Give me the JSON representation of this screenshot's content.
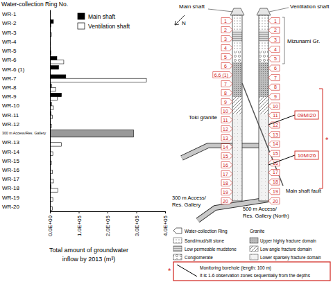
{
  "chart_data": {
    "type": "bar",
    "orientation": "horizontal",
    "y_label": "Water-collection Ring No.",
    "x_label": [
      "Total amount of groundwater",
      "inflow by 2013 (m³)"
    ],
    "categories": [
      "WR-1",
      "WR-2",
      "WR-3",
      "WR-4",
      "WR-5",
      "WR-6",
      "WR-6 (1)",
      "WR-7",
      "WR-8",
      "WR-9",
      "WR-10",
      "WR-11",
      "WR-12",
      "300 m Access/Res. Gallery",
      "WR-13",
      "WR-14",
      "WR-15",
      "WR-16",
      "WR-17",
      "WR-18",
      "WR-19",
      "WR-20"
    ],
    "series": [
      {
        "name": "Main shaft",
        "color": "#000000",
        "values": [
          2000,
          12000,
          2000,
          1000,
          2000,
          24000,
          30000,
          55000,
          5000,
          40000,
          5000,
          3000,
          2000,
          null,
          2000,
          2000,
          1000,
          1000,
          2000,
          3000,
          1000,
          1000
        ]
      },
      {
        "name": "Ventilation shaft",
        "color": "#ffffff",
        "values": [
          1000,
          3000,
          5000,
          2000,
          3000,
          48000,
          null,
          335000,
          20000,
          25000,
          12000,
          8000,
          5000,
          null,
          40000,
          10000,
          5000,
          8000,
          12000,
          28000,
          10000,
          8000
        ]
      },
      {
        "color": "#999999",
        "values": [
          null,
          null,
          null,
          null,
          null,
          null,
          null,
          null,
          null,
          null,
          null,
          null,
          null,
          290000,
          null,
          null,
          null,
          null,
          null,
          null,
          null,
          null
        ]
      }
    ],
    "xlim": [
      0,
      400000
    ],
    "xticks": [
      {
        "value": 0,
        "label": "0.0E+00"
      },
      {
        "value": 100000,
        "label": "1.0E+05"
      },
      {
        "value": 200000,
        "label": "2.0E+05"
      },
      {
        "value": 300000,
        "label": "3.0E+05"
      },
      {
        "value": 400000,
        "label": "4.0E+05"
      }
    ]
  },
  "diagram": {
    "shafts": [
      {
        "label": "Main shaft",
        "rings": [
          "1",
          "2",
          "3",
          "4",
          "5",
          "6",
          "6.6 (1)",
          "7",
          "8",
          "9",
          "10",
          "11",
          "12",
          "13",
          "14",
          "15",
          "16",
          "17",
          "18",
          "19",
          "20"
        ]
      },
      {
        "label": "Ventilation shaft",
        "rings": [
          "1",
          "2",
          "3",
          "4",
          "5",
          "6",
          "7",
          "8",
          "9",
          "10",
          "11",
          "12",
          "13",
          "14",
          "15",
          "16",
          "17",
          "18",
          "19",
          "20"
        ]
      }
    ],
    "north": "N",
    "labels": {
      "mizunami": "Mizunami Gr.",
      "toki": "Toki granite",
      "gallery_300": [
        "300 m Access/",
        "Res. Gallery"
      ],
      "gallery_500": [
        "500 m Access/",
        "Res. Gallery (North)"
      ],
      "fault": "Main shaft fault"
    },
    "boreholes": [
      "09MI20",
      "10MI26"
    ],
    "asterisk": "*",
    "legend": {
      "ring": "Water-collection Ring",
      "rock": [
        "Sand/mud/silt stone",
        "Low permeable mudstone",
        "Conglomerate"
      ],
      "granite_title": "Granite",
      "granite": [
        "Upper highly fracture domain",
        "Low angle fracture domain",
        "Lower sparsely fracture domain"
      ]
    },
    "note": [
      "Monitoring borehole (length: 100 m)",
      "It is 1-6 observation zones sequentially from the depths"
    ]
  }
}
